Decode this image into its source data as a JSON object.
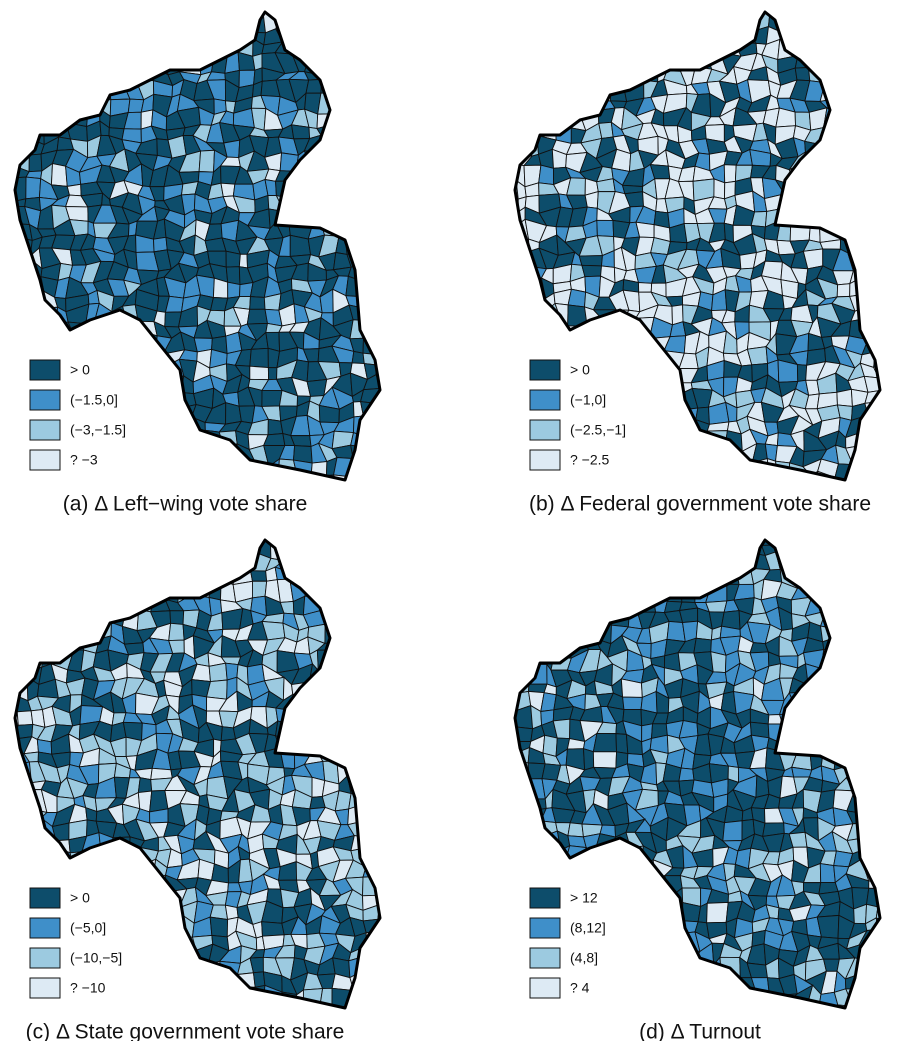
{
  "colors": [
    "#0d4d6b",
    "#3f8fc9",
    "#9ccae0",
    "#ddeaf4"
  ],
  "panels": [
    {
      "caption": "(a) Δ Left−wing vote share",
      "legend": [
        "> 0",
        "(−1.5,0]",
        "(−3,−1.5]",
        "? −3"
      ]
    },
    {
      "caption": "(b) Δ Federal government vote share",
      "legend": [
        "> 0",
        "(−1,0]",
        "(−2.5,−1]",
        "? −2.5"
      ]
    },
    {
      "caption": "(c) Δ State government vote share",
      "legend": [
        "> 0",
        "(−5,0]",
        "(−10,−5]",
        "? −10"
      ]
    },
    {
      "caption": "(d) Δ Turnout",
      "legend": [
        "> 12",
        "(8,12]",
        "(4,8]",
        "? 4"
      ]
    }
  ]
}
